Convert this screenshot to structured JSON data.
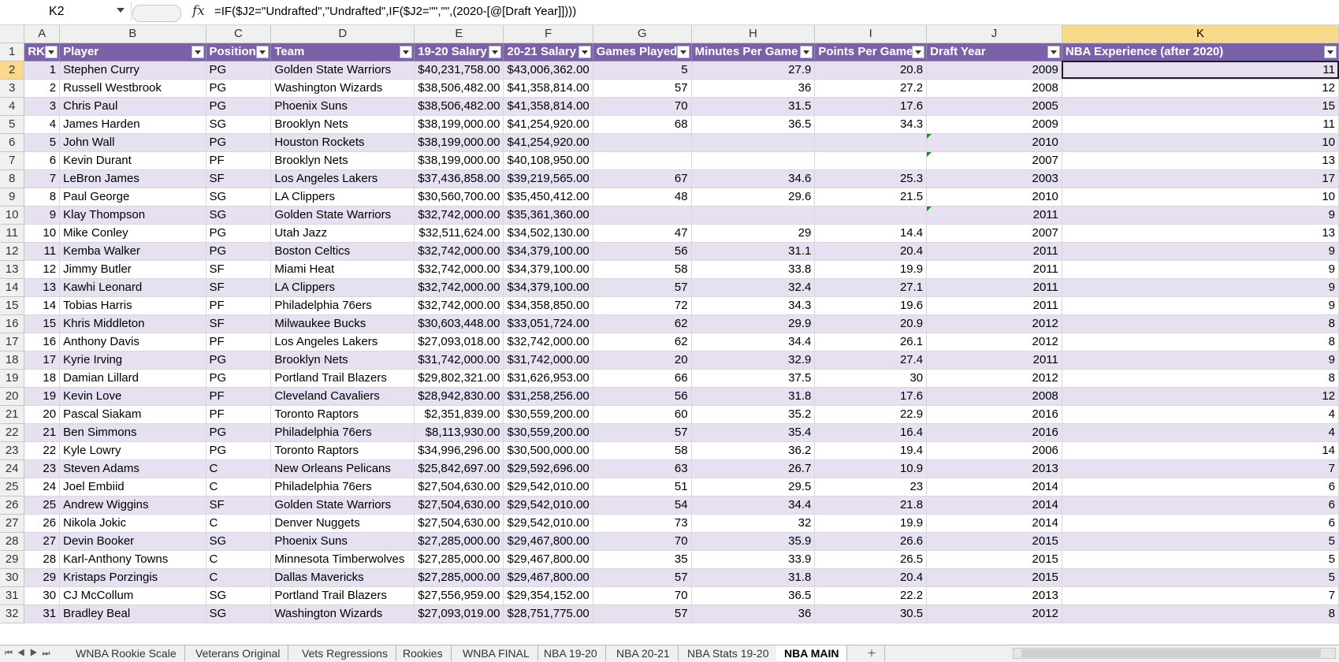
{
  "formula_bar": {
    "name_box": "K2",
    "fx": "fx",
    "formula": "=IF($J2=\"Undrafted\",\"Undrafted\",IF($J2=\"\",\"\",(2020-[@[Draft Year]])))"
  },
  "columns": [
    "A",
    "B",
    "C",
    "D",
    "E",
    "F",
    "G",
    "H",
    "I",
    "J",
    "K"
  ],
  "selected_column": "K",
  "active_cell": "K2",
  "header_row": {
    "row_num": "1",
    "cells": [
      "RK",
      "Player",
      "Position",
      "Team",
      "19-20 Salary",
      "20-21 Salary",
      "Games Played",
      "Minutes Per Game",
      "Points Per Game",
      "Draft Year",
      "NBA Experience (after 2020)"
    ]
  },
  "rows": [
    {
      "n": "2",
      "v": [
        "1",
        "Stephen Curry",
        "PG",
        "Golden State Warriors",
        "$40,231,758.00",
        "$43,006,362.00",
        "5",
        "27.9",
        "20.8",
        "2009",
        "11"
      ]
    },
    {
      "n": "3",
      "v": [
        "2",
        "Russell Westbrook",
        "PG",
        "Washington Wizards",
        "$38,506,482.00",
        "$41,358,814.00",
        "57",
        "36",
        "27.2",
        "2008",
        "12"
      ]
    },
    {
      "n": "4",
      "v": [
        "3",
        "Chris Paul",
        "PG",
        "Phoenix Suns",
        "$38,506,482.00",
        "$41,358,814.00",
        "70",
        "31.5",
        "17.6",
        "2005",
        "15"
      ]
    },
    {
      "n": "5",
      "v": [
        "4",
        "James Harden",
        "SG",
        "Brooklyn Nets",
        "$38,199,000.00",
        "$41,254,920.00",
        "68",
        "36.5",
        "34.3",
        "2009",
        "11"
      ]
    },
    {
      "n": "6",
      "v": [
        "5",
        "John Wall",
        "PG",
        "Houston Rockets",
        "$38,199,000.00",
        "$41,254,920.00",
        "",
        "",
        "",
        "2010",
        "10"
      ]
    },
    {
      "n": "7",
      "v": [
        "6",
        "Kevin Durant",
        "PF",
        "Brooklyn Nets",
        "$38,199,000.00",
        "$40,108,950.00",
        "",
        "",
        "",
        "2007",
        "13"
      ]
    },
    {
      "n": "8",
      "v": [
        "7",
        "LeBron James",
        "SF",
        "Los Angeles Lakers",
        "$37,436,858.00",
        "$39,219,565.00",
        "67",
        "34.6",
        "25.3",
        "2003",
        "17"
      ]
    },
    {
      "n": "9",
      "v": [
        "8",
        "Paul George",
        "SG",
        "LA Clippers",
        "$30,560,700.00",
        "$35,450,412.00",
        "48",
        "29.6",
        "21.5",
        "2010",
        "10"
      ]
    },
    {
      "n": "10",
      "v": [
        "9",
        "Klay Thompson",
        "SG",
        "Golden State Warriors",
        "$32,742,000.00",
        "$35,361,360.00",
        "",
        "",
        "",
        "2011",
        "9"
      ]
    },
    {
      "n": "11",
      "v": [
        "10",
        "Mike Conley",
        "PG",
        "Utah Jazz",
        "$32,511,624.00",
        "$34,502,130.00",
        "47",
        "29",
        "14.4",
        "2007",
        "13"
      ]
    },
    {
      "n": "12",
      "v": [
        "11",
        "Kemba Walker",
        "PG",
        "Boston Celtics",
        "$32,742,000.00",
        "$34,379,100.00",
        "56",
        "31.1",
        "20.4",
        "2011",
        "9"
      ]
    },
    {
      "n": "13",
      "v": [
        "12",
        "Jimmy Butler",
        "SF",
        "Miami Heat",
        "$32,742,000.00",
        "$34,379,100.00",
        "58",
        "33.8",
        "19.9",
        "2011",
        "9"
      ]
    },
    {
      "n": "14",
      "v": [
        "13",
        "Kawhi Leonard",
        "SF",
        "LA Clippers",
        "$32,742,000.00",
        "$34,379,100.00",
        "57",
        "32.4",
        "27.1",
        "2011",
        "9"
      ]
    },
    {
      "n": "15",
      "v": [
        "14",
        "Tobias Harris",
        "PF",
        "Philadelphia 76ers",
        "$32,742,000.00",
        "$34,358,850.00",
        "72",
        "34.3",
        "19.6",
        "2011",
        "9"
      ]
    },
    {
      "n": "16",
      "v": [
        "15",
        "Khris Middleton",
        "SF",
        "Milwaukee Bucks",
        "$30,603,448.00",
        "$33,051,724.00",
        "62",
        "29.9",
        "20.9",
        "2012",
        "8"
      ]
    },
    {
      "n": "17",
      "v": [
        "16",
        "Anthony Davis",
        "PF",
        "Los Angeles Lakers",
        "$27,093,018.00",
        "$32,742,000.00",
        "62",
        "34.4",
        "26.1",
        "2012",
        "8"
      ]
    },
    {
      "n": "18",
      "v": [
        "17",
        "Kyrie Irving",
        "PG",
        "Brooklyn Nets",
        "$31,742,000.00",
        "$31,742,000.00",
        "20",
        "32.9",
        "27.4",
        "2011",
        "9"
      ]
    },
    {
      "n": "19",
      "v": [
        "18",
        "Damian Lillard",
        "PG",
        "Portland Trail Blazers",
        "$29,802,321.00",
        "$31,626,953.00",
        "66",
        "37.5",
        "30",
        "2012",
        "8"
      ]
    },
    {
      "n": "20",
      "v": [
        "19",
        "Kevin Love",
        "PF",
        "Cleveland Cavaliers",
        "$28,942,830.00",
        "$31,258,256.00",
        "56",
        "31.8",
        "17.6",
        "2008",
        "12"
      ]
    },
    {
      "n": "21",
      "v": [
        "20",
        "Pascal Siakam",
        "PF",
        "Toronto Raptors",
        "$2,351,839.00",
        "$30,559,200.00",
        "60",
        "35.2",
        "22.9",
        "2016",
        "4"
      ]
    },
    {
      "n": "22",
      "v": [
        "21",
        "Ben Simmons",
        "PG",
        "Philadelphia 76ers",
        "$8,113,930.00",
        "$30,559,200.00",
        "57",
        "35.4",
        "16.4",
        "2016",
        "4"
      ]
    },
    {
      "n": "23",
      "v": [
        "22",
        "Kyle Lowry",
        "PG",
        "Toronto Raptors",
        "$34,996,296.00",
        "$30,500,000.00",
        "58",
        "36.2",
        "19.4",
        "2006",
        "14"
      ]
    },
    {
      "n": "24",
      "v": [
        "23",
        "Steven Adams",
        "C",
        "New Orleans Pelicans",
        "$25,842,697.00",
        "$29,592,696.00",
        "63",
        "26.7",
        "10.9",
        "2013",
        "7"
      ]
    },
    {
      "n": "25",
      "v": [
        "24",
        "Joel Embiid",
        "C",
        "Philadelphia 76ers",
        "$27,504,630.00",
        "$29,542,010.00",
        "51",
        "29.5",
        "23",
        "2014",
        "6"
      ]
    },
    {
      "n": "26",
      "v": [
        "25",
        "Andrew Wiggins",
        "SF",
        "Golden State Warriors",
        "$27,504,630.00",
        "$29,542,010.00",
        "54",
        "34.4",
        "21.8",
        "2014",
        "6"
      ]
    },
    {
      "n": "27",
      "v": [
        "26",
        "Nikola Jokic",
        "C",
        "Denver Nuggets",
        "$27,504,630.00",
        "$29,542,010.00",
        "73",
        "32",
        "19.9",
        "2014",
        "6"
      ]
    },
    {
      "n": "28",
      "v": [
        "27",
        "Devin Booker",
        "SG",
        "Phoenix Suns",
        "$27,285,000.00",
        "$29,467,800.00",
        "70",
        "35.9",
        "26.6",
        "2015",
        "5"
      ]
    },
    {
      "n": "29",
      "v": [
        "28",
        "Karl-Anthony Towns",
        "C",
        "Minnesota Timberwolves",
        "$27,285,000.00",
        "$29,467,800.00",
        "35",
        "33.9",
        "26.5",
        "2015",
        "5"
      ]
    },
    {
      "n": "30",
      "v": [
        "29",
        "Kristaps Porzingis",
        "C",
        "Dallas Mavericks",
        "$27,285,000.00",
        "$29,467,800.00",
        "57",
        "31.8",
        "20.4",
        "2015",
        "5"
      ]
    },
    {
      "n": "31",
      "v": [
        "30",
        "CJ McCollum",
        "SG",
        "Portland Trail Blazers",
        "$27,556,959.00",
        "$29,354,152.00",
        "70",
        "36.5",
        "22.2",
        "2013",
        "7"
      ]
    },
    {
      "n": "32",
      "v": [
        "31",
        "Bradley Beal",
        "SG",
        "Washington Wizards",
        "$27,093,019.00",
        "$28,751,775.00",
        "57",
        "36",
        "30.5",
        "2012",
        "8"
      ]
    }
  ],
  "sheet_tabs": [
    "WNBA Rookie Scale",
    "Veterans Original",
    "Vets Regressions",
    "Rookies",
    "WNBA FINAL",
    "NBA 19-20",
    "NBA 20-21",
    "NBA Stats 19-20",
    "NBA MAIN"
  ],
  "active_tab": "NBA MAIN",
  "colors": {
    "header_purple": "#7b62a8",
    "band_lavender": "#e6e0f0",
    "selected_header": "#f9d98a"
  }
}
